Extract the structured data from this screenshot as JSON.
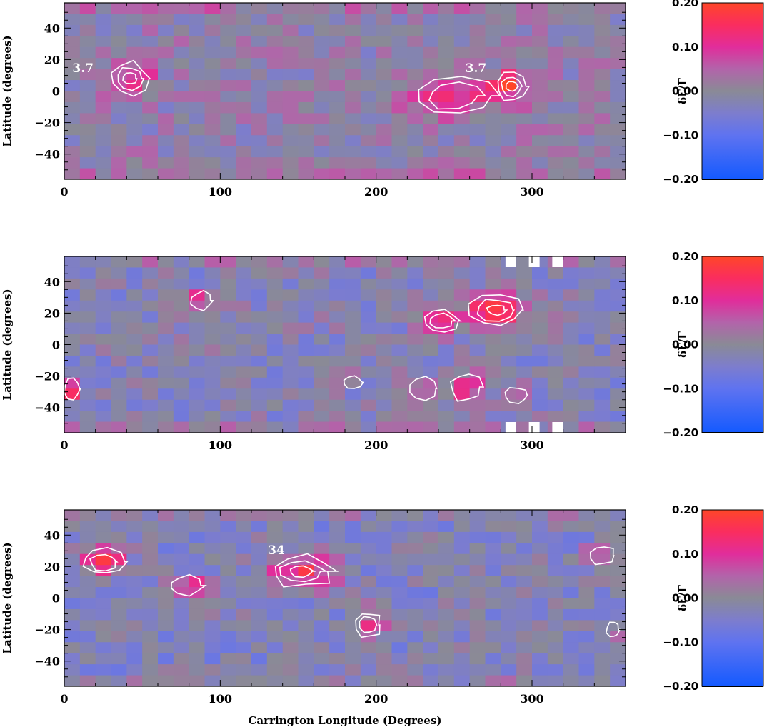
{
  "chart_data": [
    {
      "type": "heatmap",
      "xlim": [
        0,
        360
      ],
      "ylim": [
        -56,
        56
      ],
      "xticks": [
        "0",
        "100",
        "200",
        "300"
      ],
      "yticks": [
        "−40",
        "−20",
        "0",
        "20",
        "40"
      ],
      "ylabel": "Latitude (degrees)",
      "xlabel": "",
      "colorbar": {
        "label": "δΓ/Γ",
        "ticks": [
          "0.20",
          "0.10",
          "0.00",
          "−0.10",
          "−0.20"
        ],
        "range": [
          -0.2,
          0.2
        ]
      },
      "contour_labels": [
        {
          "text": "3.7",
          "lon": 12,
          "lat": 12
        },
        {
          "text": "3.7",
          "lon": 264,
          "lat": 12
        }
      ],
      "features": [
        {
          "lon": 42,
          "lat": 8,
          "peak": 0.13,
          "rings": 3,
          "w": 24,
          "h": 20
        },
        {
          "lon": 250,
          "lat": -3,
          "peak": 0.11,
          "rings": 2,
          "w": 52,
          "h": 24
        },
        {
          "lon": 287,
          "lat": 3,
          "peak": 0.14,
          "rings": 3,
          "w": 20,
          "h": 20
        }
      ]
    },
    {
      "type": "heatmap",
      "xlim": [
        0,
        360
      ],
      "ylim": [
        -56,
        56
      ],
      "xticks": [
        "0",
        "100",
        "200",
        "300"
      ],
      "yticks": [
        "−40",
        "−20",
        "0",
        "20",
        "40"
      ],
      "ylabel": "Latitude (degrees)",
      "xlabel": "",
      "colorbar": {
        "label": "δΓ/Γ",
        "ticks": [
          "0.20",
          "0.10",
          "0.00",
          "−0.10",
          "−0.20"
        ],
        "range": [
          -0.2,
          0.2
        ]
      },
      "contour_labels": [],
      "features": [
        {
          "lon": 88,
          "lat": 28,
          "peak": 0.14,
          "rings": 1,
          "w": 14,
          "h": 12
        },
        {
          "lon": 242,
          "lat": 15,
          "peak": 0.16,
          "rings": 2,
          "w": 22,
          "h": 14
        },
        {
          "lon": 277,
          "lat": 22,
          "peak": 0.17,
          "rings": 3,
          "w": 34,
          "h": 20
        },
        {
          "lon": 5,
          "lat": -28,
          "peak": 0.15,
          "rings": 1,
          "w": 10,
          "h": 14
        },
        {
          "lon": 185,
          "lat": -24,
          "peak": 0.08,
          "rings": 1,
          "w": 12,
          "h": 8
        },
        {
          "lon": 230,
          "lat": -28,
          "peak": 0.12,
          "rings": 1,
          "w": 18,
          "h": 14
        },
        {
          "lon": 258,
          "lat": -27,
          "peak": 0.14,
          "rings": 1,
          "w": 20,
          "h": 18
        },
        {
          "lon": 290,
          "lat": -32,
          "peak": 0.08,
          "rings": 1,
          "w": 16,
          "h": 10
        }
      ]
    },
    {
      "type": "heatmap",
      "xlim": [
        0,
        360
      ],
      "ylim": [
        -56,
        56
      ],
      "xticks": [
        "0",
        "100",
        "200",
        "300"
      ],
      "yticks": [
        "−40",
        "−20",
        "0",
        "20",
        "40"
      ],
      "ylabel": "Latitude (degrees)",
      "xlabel": "Carrington Longitude (Degrees)",
      "colorbar": {
        "label": "δΓ/Γ",
        "ticks": [
          "0.20",
          "0.10",
          "0.00",
          "−0.10",
          "−0.20"
        ],
        "range": [
          -0.2,
          0.2
        ]
      },
      "contour_labels": [
        {
          "text": "34",
          "lon": 136,
          "lat": 28
        }
      ],
      "features": [
        {
          "lon": 25,
          "lat": 23,
          "peak": 0.16,
          "rings": 2,
          "w": 26,
          "h": 16
        },
        {
          "lon": 78,
          "lat": 8,
          "peak": 0.15,
          "rings": 1,
          "w": 22,
          "h": 12
        },
        {
          "lon": 152,
          "lat": 17,
          "peak": 0.18,
          "rings": 3,
          "w": 40,
          "h": 20
        },
        {
          "lon": 195,
          "lat": -17,
          "peak": 0.16,
          "rings": 2,
          "w": 16,
          "h": 16
        },
        {
          "lon": 345,
          "lat": 27,
          "peak": 0.14,
          "rings": 1,
          "w": 16,
          "h": 12
        },
        {
          "lon": 352,
          "lat": -20,
          "peak": 0.12,
          "rings": 1,
          "w": 8,
          "h": 10
        }
      ]
    }
  ]
}
